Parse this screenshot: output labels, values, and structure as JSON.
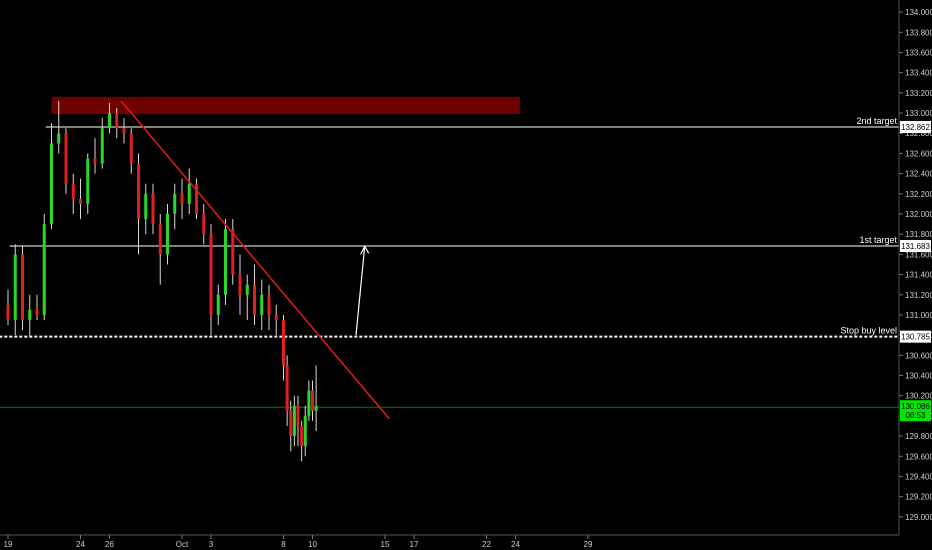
{
  "chart_data": {
    "type": "candlestick",
    "title": "",
    "xlabel": "",
    "ylabel": "",
    "ylim": [
      128.82,
      134.12
    ],
    "x_ticks": [
      {
        "label": "19",
        "day": 0
      },
      {
        "label": "24",
        "day": 5
      },
      {
        "label": "26",
        "day": 7
      },
      {
        "label": "Oct",
        "day": 12
      },
      {
        "label": "3",
        "day": 14
      },
      {
        "label": "8",
        "day": 19
      },
      {
        "label": "10",
        "day": 21
      },
      {
        "label": "15",
        "day": 26
      },
      {
        "label": "17",
        "day": 28
      },
      {
        "label": "22",
        "day": 33
      },
      {
        "label": "24",
        "day": 35
      },
      {
        "label": "29",
        "day": 40
      }
    ],
    "y_ticks": [
      "129.000",
      "129.200",
      "129.400",
      "129.600",
      "129.800",
      "130.000",
      "130.200",
      "130.400",
      "130.600",
      "130.800",
      "131.000",
      "131.200",
      "131.400",
      "131.600",
      "131.800",
      "132.000",
      "132.200",
      "132.400",
      "132.600",
      "132.800",
      "133.000",
      "133.200",
      "133.400",
      "133.600",
      "133.800",
      "134.000"
    ],
    "levels": [
      {
        "label": "2nd target",
        "price": 132.862,
        "tag": "132.862",
        "style": "solid",
        "color": "#ffffff"
      },
      {
        "label": "1st target",
        "price": 131.683,
        "tag": "131.683",
        "style": "solid",
        "color": "#ffffff"
      },
      {
        "label": "Stop buy level",
        "price": 130.785,
        "tag": "130.785",
        "style": "dashed",
        "color": "#ffffff"
      }
    ],
    "current_price": {
      "price": 130.086,
      "tag": "130.086",
      "countdown": "06:53",
      "color": "#00e600"
    },
    "resistance_zone": {
      "from_day": 3.0,
      "to_day": 35.3,
      "low": 132.99,
      "high": 133.16,
      "color": "#6e0000"
    },
    "trendline": {
      "start": {
        "day": 7.8,
        "price": 133.12
      },
      "end": {
        "day": 26.3,
        "price": 129.97
      },
      "color": "#e31c1c"
    },
    "arrow": {
      "start": {
        "day": 24.0,
        "price": 130.8
      },
      "end": {
        "day": 24.6,
        "price": 131.68
      },
      "color": "#ffffff"
    },
    "bull_color": "#2bd62b",
    "bear_color": "#e02020",
    "wick_color": "#d8d8d8",
    "candles": [
      {
        "d": 0.0,
        "o": 131.1,
        "h": 131.25,
        "l": 130.9,
        "c": 130.95
      },
      {
        "d": 0.5,
        "o": 130.95,
        "h": 131.7,
        "l": 130.8,
        "c": 131.6
      },
      {
        "d": 1.0,
        "o": 131.6,
        "h": 131.68,
        "l": 130.85,
        "c": 130.95
      },
      {
        "d": 1.5,
        "o": 130.95,
        "h": 131.2,
        "l": 130.78,
        "c": 131.05
      },
      {
        "d": 2.0,
        "o": 131.05,
        "h": 131.2,
        "l": 130.95,
        "c": 131.0
      },
      {
        "d": 2.5,
        "o": 131.0,
        "h": 132.0,
        "l": 130.95,
        "c": 131.9
      },
      {
        "d": 3.0,
        "o": 131.9,
        "h": 132.9,
        "l": 131.85,
        "c": 132.7
      },
      {
        "d": 3.5,
        "o": 132.7,
        "h": 133.12,
        "l": 132.6,
        "c": 132.8
      },
      {
        "d": 4.0,
        "o": 132.8,
        "h": 132.85,
        "l": 132.2,
        "c": 132.3
      },
      {
        "d": 4.5,
        "o": 132.3,
        "h": 132.4,
        "l": 132.0,
        "c": 132.15
      },
      {
        "d": 5.0,
        "o": 132.15,
        "h": 132.35,
        "l": 131.95,
        "c": 132.1
      },
      {
        "d": 5.5,
        "o": 132.1,
        "h": 132.6,
        "l": 132.0,
        "c": 132.55
      },
      {
        "d": 6.0,
        "o": 132.55,
        "h": 132.75,
        "l": 132.4,
        "c": 132.5
      },
      {
        "d": 6.5,
        "o": 132.5,
        "h": 132.95,
        "l": 132.45,
        "c": 132.85
      },
      {
        "d": 7.0,
        "o": 132.85,
        "h": 133.1,
        "l": 132.8,
        "c": 133.0
      },
      {
        "d": 7.5,
        "o": 133.0,
        "h": 133.05,
        "l": 132.75,
        "c": 132.85
      },
      {
        "d": 8.0,
        "o": 132.85,
        "h": 132.95,
        "l": 132.7,
        "c": 132.8
      },
      {
        "d": 8.5,
        "o": 132.8,
        "h": 132.85,
        "l": 132.4,
        "c": 132.5
      },
      {
        "d": 9.0,
        "o": 132.5,
        "h": 132.6,
        "l": 131.6,
        "c": 131.95
      },
      {
        "d": 9.5,
        "o": 131.95,
        "h": 132.3,
        "l": 131.8,
        "c": 132.2
      },
      {
        "d": 10.0,
        "o": 132.2,
        "h": 132.3,
        "l": 131.8,
        "c": 131.9
      },
      {
        "d": 10.5,
        "o": 131.9,
        "h": 132.0,
        "l": 131.3,
        "c": 131.6
      },
      {
        "d": 11.0,
        "o": 131.6,
        "h": 132.1,
        "l": 131.5,
        "c": 132.0
      },
      {
        "d": 11.5,
        "o": 132.0,
        "h": 132.3,
        "l": 131.85,
        "c": 132.2
      },
      {
        "d": 12.0,
        "o": 132.2,
        "h": 132.35,
        "l": 131.95,
        "c": 132.1
      },
      {
        "d": 12.5,
        "o": 132.1,
        "h": 132.45,
        "l": 132.0,
        "c": 132.3
      },
      {
        "d": 13.0,
        "o": 132.3,
        "h": 132.35,
        "l": 131.95,
        "c": 132.0
      },
      {
        "d": 13.5,
        "o": 132.0,
        "h": 132.1,
        "l": 131.7,
        "c": 131.8
      },
      {
        "d": 14.0,
        "o": 131.8,
        "h": 131.9,
        "l": 130.8,
        "c": 131.0
      },
      {
        "d": 14.5,
        "o": 131.0,
        "h": 131.3,
        "l": 130.9,
        "c": 131.2
      },
      {
        "d": 15.0,
        "o": 131.2,
        "h": 131.95,
        "l": 131.1,
        "c": 131.85
      },
      {
        "d": 15.5,
        "o": 131.85,
        "h": 131.95,
        "l": 131.3,
        "c": 131.4
      },
      {
        "d": 16.0,
        "o": 131.4,
        "h": 131.6,
        "l": 131.0,
        "c": 131.2
      },
      {
        "d": 16.5,
        "o": 131.2,
        "h": 131.4,
        "l": 130.95,
        "c": 131.3
      },
      {
        "d": 17.0,
        "o": 131.3,
        "h": 131.5,
        "l": 130.9,
        "c": 131.0
      },
      {
        "d": 17.5,
        "o": 131.0,
        "h": 131.35,
        "l": 130.85,
        "c": 131.2
      },
      {
        "d": 18.0,
        "o": 131.2,
        "h": 131.3,
        "l": 130.85,
        "c": 131.0
      },
      {
        "d": 18.5,
        "o": 131.0,
        "h": 131.1,
        "l": 130.8,
        "c": 130.95
      },
      {
        "d": 19.0,
        "o": 130.95,
        "h": 131.0,
        "l": 130.35,
        "c": 130.5
      },
      {
        "d": 19.25,
        "o": 130.5,
        "h": 130.6,
        "l": 129.9,
        "c": 130.05
      },
      {
        "d": 19.5,
        "o": 130.05,
        "h": 130.15,
        "l": 129.65,
        "c": 129.8
      },
      {
        "d": 19.75,
        "o": 129.8,
        "h": 130.2,
        "l": 129.7,
        "c": 130.1
      },
      {
        "d": 20.0,
        "o": 130.1,
        "h": 130.2,
        "l": 129.7,
        "c": 129.9
      },
      {
        "d": 20.25,
        "o": 129.9,
        "h": 129.95,
        "l": 129.55,
        "c": 129.7
      },
      {
        "d": 20.5,
        "o": 129.7,
        "h": 130.1,
        "l": 129.6,
        "c": 130.0
      },
      {
        "d": 20.75,
        "o": 130.0,
        "h": 130.35,
        "l": 129.95,
        "c": 130.25
      },
      {
        "d": 21.0,
        "o": 130.25,
        "h": 130.35,
        "l": 129.95,
        "c": 130.05
      },
      {
        "d": 21.25,
        "o": 130.05,
        "h": 130.5,
        "l": 129.85,
        "c": 130.1
      }
    ]
  }
}
